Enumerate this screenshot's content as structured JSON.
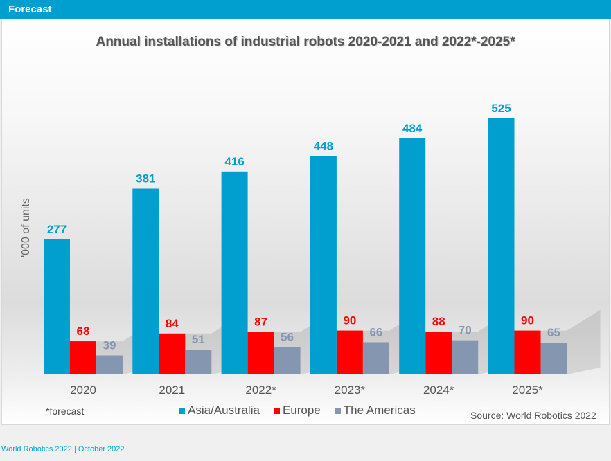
{
  "header": {
    "title": "Forecast"
  },
  "footer": {
    "note": "*forecast",
    "source": "Source: World Robotics 2022",
    "bottom": "World Robotics 2022  | October 2022"
  },
  "colors": {
    "asia": "#009fd0",
    "europe": "#ff0000",
    "americas": "#8496b0",
    "header": "#009fd0"
  },
  "chart_data": {
    "type": "bar",
    "title": "Annual installations of industrial robots 2020-2021 and 2022*-2025*",
    "xlabel": "",
    "ylabel": "'000 of units",
    "categories": [
      "2020",
      "2021",
      "2022*",
      "2023*",
      "2024*",
      "2025*"
    ],
    "series": [
      {
        "name": "Asia/Australia",
        "values": [
          277,
          381,
          416,
          448,
          484,
          525
        ]
      },
      {
        "name": "Europe",
        "values": [
          68,
          84,
          87,
          90,
          88,
          90
        ]
      },
      {
        "name": "The Americas",
        "values": [
          39,
          51,
          56,
          66,
          70,
          65
        ]
      }
    ],
    "ylim": [
      0,
      560
    ],
    "grid": false,
    "legend_position": "bottom"
  }
}
